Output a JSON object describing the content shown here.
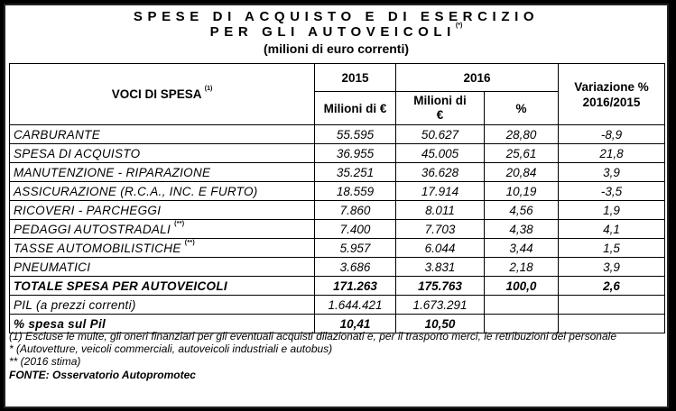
{
  "title": {
    "line1": "SPESE DI ACQUISTO E DI ESERCIZIO",
    "line2": "PER GLI AUTOVEICOLI",
    "line2_mark": "(*)",
    "line3": "(milioni di euro correnti)"
  },
  "header": {
    "voci": "VOCI DI SPESA",
    "voci_mark": "(1)",
    "year_2015": "2015",
    "year_2016": "2016",
    "variazione_line1": "Variazione %",
    "variazione_line2": "2016/2015",
    "milioni_2015": "Milioni di €",
    "milioni_2016_line1": "Milioni di",
    "milioni_2016_line2": "€",
    "pct": "%"
  },
  "rows": [
    {
      "label": "CARBURANTE",
      "mark": "",
      "v2015": "55.595",
      "v2016": "50.627",
      "pct": "28,80",
      "var": "-8,9"
    },
    {
      "label": "SPESA DI ACQUISTO",
      "mark": "",
      "v2015": "36.955",
      "v2016": "45.005",
      "pct": "25,61",
      "var": "21,8"
    },
    {
      "label": "MANUTENZIONE - RIPARAZIONE",
      "mark": "",
      "v2015": "35.251",
      "v2016": "36.628",
      "pct": "20,84",
      "var": "3,9"
    },
    {
      "label": "ASSICURAZIONE (R.C.A., INC. E FURTO)",
      "mark": "",
      "v2015": "18.559",
      "v2016": "17.914",
      "pct": "10,19",
      "var": "-3,5"
    },
    {
      "label": "RICOVERI - PARCHEGGI",
      "mark": "",
      "v2015": "7.860",
      "v2016": "8.011",
      "pct": "4,56",
      "var": "1,9"
    },
    {
      "label": "PEDAGGI  AUTOSTRADALI",
      "mark": "(**)",
      "v2015": "7.400",
      "v2016": "7.703",
      "pct": "4,38",
      "var": "4,1"
    },
    {
      "label": "TASSE AUTOMOBILISTICHE",
      "mark": "(**)",
      "v2015": "5.957",
      "v2016": "6.044",
      "pct": "3,44",
      "var": "1,5"
    },
    {
      "label": "PNEUMATICI",
      "mark": "",
      "v2015": "3.686",
      "v2016": "3.831",
      "pct": "2,18",
      "var": "3,9"
    }
  ],
  "totale": {
    "label": "TOTALE SPESA PER AUTOVEICOLI",
    "v2015": "171.263",
    "v2016": "175.763",
    "pct": "100,0",
    "var": "2,6"
  },
  "pil": {
    "label": "PIL (a prezzi correnti)",
    "v2015": "1.644.421",
    "v2016": "1.673.291"
  },
  "spesa_pil": {
    "label": "% spesa sul Pil",
    "v2015": "10,41",
    "v2016": "10,50"
  },
  "notes": {
    "n1": "(1) Escluse le multe, gli oneri finanziari per gli eventuali acquisti dilazionati e, per il trasporto merci, le retribuzioni del personale",
    "n2": "* (Autovetture, veicoli commerciali, autoveicoli industriali e autobus)",
    "n3": "** (2016 stima)",
    "fonte": "FONTE: Osservatorio Autopromotec"
  }
}
